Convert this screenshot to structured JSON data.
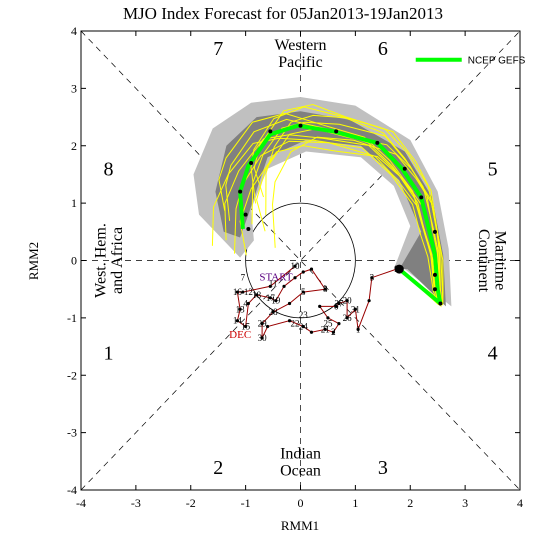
{
  "chart_data": {
    "type": "scatter",
    "title": "MJO Index Forecast for 05Jan2013-19Jan2013",
    "xlabel": "RMM1",
    "ylabel": "RMM2",
    "xlim": [
      -4,
      4
    ],
    "ylim": [
      -4,
      4
    ],
    "xticks": [
      "-4",
      "-3",
      "-2",
      "-1",
      "0",
      "1",
      "2",
      "3",
      "4"
    ],
    "yticks": [
      "4",
      "3",
      "2",
      "1",
      "0",
      "-1",
      "-2",
      "-3",
      "-4"
    ],
    "phases": [
      "1",
      "2",
      "3",
      "4",
      "5",
      "6",
      "7",
      "8"
    ],
    "regions": {
      "top": [
        "Western",
        "Pacific"
      ],
      "bottom": [
        "Indian",
        "Ocean"
      ],
      "left": [
        "West. Hem.",
        "and Africa"
      ],
      "right": [
        "Maritime",
        "Continent"
      ]
    },
    "legend": {
      "label": "NCEP GEFS",
      "color": "#00ff00",
      "position": "top-right"
    },
    "start_label": "START",
    "dec_label": "DEC",
    "colors": {
      "observed": "#990000",
      "start": "#5a0080",
      "dec": "#cc0000",
      "members": "#ffff00",
      "mean": "#00ff00",
      "shade_outer": "#c0c0c0",
      "shade_inner": "#808080"
    },
    "observed": [
      {
        "day": "1",
        "x": 1.05,
        "y": -1.2
      },
      {
        "day": "2",
        "x": 0.6,
        "y": -1.25
      },
      {
        "day": "3",
        "x": 1.3,
        "y": -0.3
      },
      {
        "day": "4",
        "x": -1.0,
        "y": -0.75
      },
      {
        "day": "5",
        "x": 0.05,
        "y": -0.55
      },
      {
        "day": "6",
        "x": 0.65,
        "y": -0.8
      },
      {
        "day": "7",
        "x": -1.05,
        "y": -0.3
      },
      {
        "day": "8",
        "x": 0.45,
        "y": -0.5
      },
      {
        "day": "9",
        "x": 1.75,
        "y": -0.15
      },
      {
        "day": "10",
        "x": -0.1,
        "y": -0.1
      },
      {
        "day": "11",
        "x": -0.5,
        "y": -0.4
      },
      {
        "day": "12",
        "x": -0.95,
        "y": -0.55
      },
      {
        "day": "13",
        "x": -1.1,
        "y": -0.85
      },
      {
        "day": "14",
        "x": -1.15,
        "y": -1.05
      },
      {
        "day": "15",
        "x": -1.0,
        "y": -1.15
      },
      {
        "day": "16",
        "x": -1.15,
        "y": -0.55
      },
      {
        "day": "17",
        "x": -0.55,
        "y": -0.65
      },
      {
        "day": "18",
        "x": -0.8,
        "y": -0.6
      },
      {
        "day": "19",
        "x": -0.45,
        "y": -0.7
      },
      {
        "day": "20",
        "x": 0.85,
        "y": -0.7
      },
      {
        "day": "21",
        "x": 0.45,
        "y": -1.2
      },
      {
        "day": "22",
        "x": -0.1,
        "y": -1.1
      },
      {
        "day": "23",
        "x": 0.05,
        "y": -0.95
      },
      {
        "day": "24",
        "x": 0.05,
        "y": -1.15
      },
      {
        "day": "25",
        "x": 0.5,
        "y": -1.1
      },
      {
        "day": "26",
        "x": 0.85,
        "y": -1.0
      },
      {
        "day": "27",
        "x": 0.7,
        "y": -0.75
      },
      {
        "day": "28",
        "x": -0.5,
        "y": -0.9
      },
      {
        "day": "29",
        "x": -0.7,
        "y": -1.1
      },
      {
        "day": "30",
        "x": -0.7,
        "y": -1.35
      },
      {
        "day": "31",
        "x": 1.0,
        "y": -0.85
      }
    ],
    "observed_path": [
      [
        -0.1,
        -0.1
      ],
      [
        -0.55,
        -0.45
      ],
      [
        -1.05,
        -0.55
      ],
      [
        -1.15,
        -0.55
      ],
      [
        -1.1,
        -0.85
      ],
      [
        -1.15,
        -1.05
      ],
      [
        -1.0,
        -1.15
      ],
      [
        -0.95,
        -0.75
      ],
      [
        -0.8,
        -0.6
      ],
      [
        -0.55,
        -0.65
      ],
      [
        -0.45,
        -0.7
      ],
      [
        -0.3,
        -0.45
      ],
      [
        -0.1,
        -0.3
      ],
      [
        0.05,
        -0.2
      ],
      [
        0.2,
        -0.15
      ],
      [
        0.45,
        -0.5
      ],
      [
        0.05,
        -0.55
      ],
      [
        -0.2,
        -0.75
      ],
      [
        -0.5,
        -0.9
      ],
      [
        -0.7,
        -1.1
      ],
      [
        -0.7,
        -1.35
      ],
      [
        -0.6,
        -1.15
      ],
      [
        -0.2,
        -1.05
      ],
      [
        0.05,
        -1.15
      ],
      [
        0.2,
        -1.25
      ],
      [
        0.45,
        -1.2
      ],
      [
        0.6,
        -1.25
      ],
      [
        0.7,
        -1.1
      ],
      [
        0.5,
        -1.0
      ],
      [
        0.35,
        -0.8
      ],
      [
        0.65,
        -0.8
      ],
      [
        0.7,
        -0.75
      ],
      [
        0.85,
        -0.7
      ],
      [
        0.85,
        -1.0
      ],
      [
        1.0,
        -0.85
      ],
      [
        1.05,
        -1.2
      ],
      [
        1.25,
        -0.7
      ],
      [
        1.3,
        -0.3
      ],
      [
        1.75,
        -0.15
      ]
    ],
    "mean_forecast": [
      [
        1.8,
        -0.15
      ],
      [
        2.55,
        -0.75
      ],
      [
        2.5,
        -0.5
      ],
      [
        2.45,
        0.1
      ],
      [
        2.35,
        0.5
      ],
      [
        2.2,
        1.1
      ],
      [
        1.85,
        1.6
      ],
      [
        1.4,
        2.05
      ],
      [
        0.6,
        2.25
      ],
      [
        -0.05,
        2.35
      ],
      [
        -0.55,
        2.2
      ],
      [
        -0.95,
        1.65
      ],
      [
        -1.1,
        1.2
      ],
      [
        -1.05,
        0.55
      ]
    ],
    "outer_band": [
      [
        1.9,
        -0.15
      ],
      [
        2.75,
        -0.8
      ],
      [
        2.7,
        0.2
      ],
      [
        2.5,
        1.2
      ],
      [
        2.0,
        2.1
      ],
      [
        1.0,
        2.7
      ],
      [
        0.0,
        2.85
      ],
      [
        -0.9,
        2.75
      ],
      [
        -1.6,
        2.3
      ],
      [
        -1.95,
        1.5
      ],
      [
        -1.85,
        0.8
      ],
      [
        -1.45,
        0.4
      ],
      [
        -1.1,
        0.05
      ],
      [
        -0.85,
        0.35
      ],
      [
        -0.9,
        0.9
      ],
      [
        -0.6,
        1.6
      ],
      [
        0.1,
        1.9
      ],
      [
        1.1,
        1.8
      ],
      [
        1.7,
        1.3
      ],
      [
        2.0,
        0.6
      ],
      [
        1.7,
        -0.15
      ]
    ],
    "inner_band": [
      [
        1.95,
        -0.15
      ],
      [
        2.65,
        -0.8
      ],
      [
        2.6,
        0.1
      ],
      [
        2.4,
        1.1
      ],
      [
        1.9,
        1.9
      ],
      [
        0.9,
        2.45
      ],
      [
        0.0,
        2.6
      ],
      [
        -0.8,
        2.5
      ],
      [
        -1.35,
        2.0
      ],
      [
        -1.55,
        1.2
      ],
      [
        -1.4,
        0.5
      ],
      [
        -1.1,
        0.4
      ],
      [
        -0.95,
        0.8
      ],
      [
        -0.6,
        1.8
      ],
      [
        0.1,
        2.1
      ],
      [
        1.1,
        2.0
      ],
      [
        1.8,
        1.4
      ],
      [
        2.2,
        0.5
      ],
      [
        1.8,
        -0.15
      ]
    ],
    "forecast_day_markers": [
      [
        2.55,
        -0.75
      ],
      [
        2.45,
        -0.5
      ],
      [
        2.45,
        -0.25
      ],
      [
        2.45,
        0.5
      ],
      [
        2.2,
        1.1
      ],
      [
        1.9,
        1.6
      ],
      [
        1.4,
        2.05
      ],
      [
        0.65,
        2.25
      ],
      [
        0.0,
        2.35
      ],
      [
        -0.55,
        2.25
      ],
      [
        -0.9,
        1.7
      ],
      [
        -1.1,
        1.2
      ],
      [
        -1.0,
        0.8
      ],
      [
        -0.95,
        0.55
      ]
    ],
    "start_point": [
      1.8,
      -0.15
    ]
  }
}
